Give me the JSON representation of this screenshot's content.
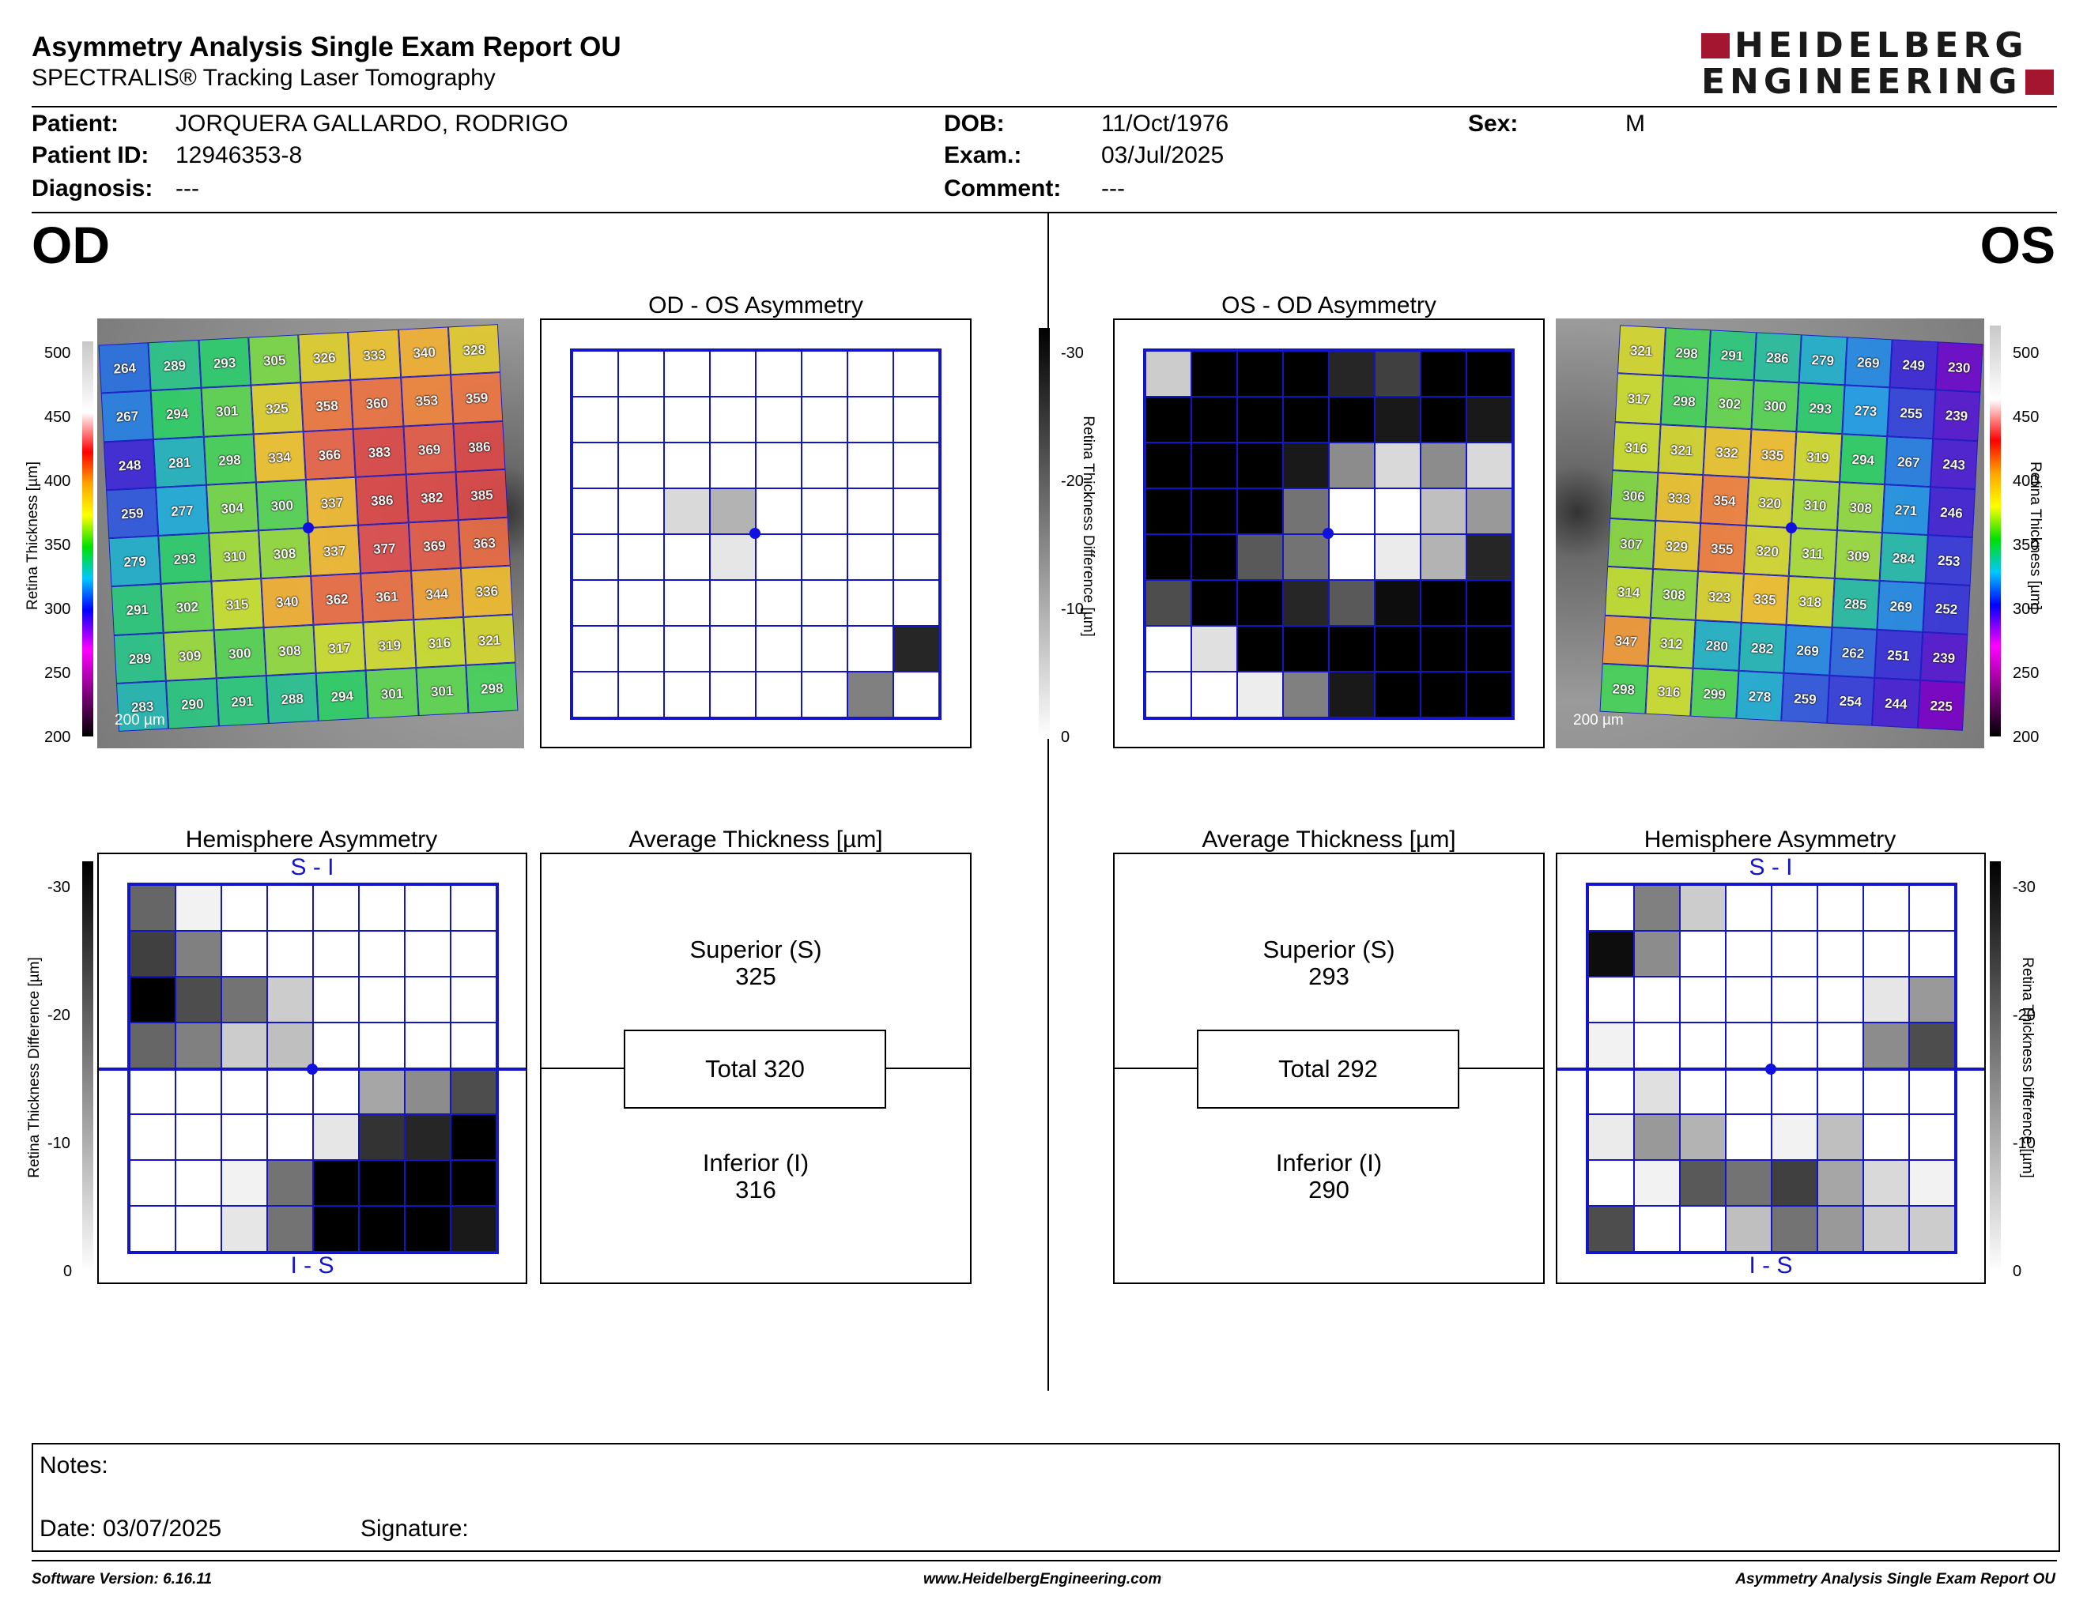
{
  "header": {
    "title": "Asymmetry Analysis Single Exam Report OU",
    "subtitle": "SPECTRALIS® Tracking Laser Tomography",
    "logo_line1": "HEIDELBERG",
    "logo_line2": "ENGINEERING"
  },
  "patient": {
    "patient_label": "Patient:",
    "patient_value": "JORQUERA GALLARDO, RODRIGO",
    "id_label": "Patient ID:",
    "id_value": "12946353-8",
    "diagnosis_label": "Diagnosis:",
    "diagnosis_value": "---",
    "dob_label": "DOB:",
    "dob_value": "11/Oct/1976",
    "exam_label": "Exam.:",
    "exam_value": "03/Jul/2025",
    "comment_label": "Comment:",
    "comment_value": "---",
    "sex_label": "Sex:",
    "sex_value": "M"
  },
  "eyes": {
    "od": "OD",
    "os": "OS"
  },
  "titles": {
    "od_os_asym": "OD - OS Asymmetry",
    "os_od_asym": "OS - OD Asymmetry",
    "hemi_left": "Hemisphere Asymmetry",
    "hemi_right": "Hemisphere Asymmetry",
    "avg_left": "Average Thickness [µm]",
    "avg_right": "Average Thickness [µm]"
  },
  "thickness_scale": {
    "label": "Retina  Thickness [µm]",
    "ticks": [
      "500",
      "450",
      "400",
      "350",
      "300",
      "250",
      "200"
    ],
    "scale_bar": "200 µm"
  },
  "diff_scale": {
    "label": "Retina Thickness Difference [µm]",
    "ticks": [
      "-30",
      "-20",
      "-10",
      "0"
    ]
  },
  "hemi_labels": {
    "top": "S - I",
    "bottom": "I - S"
  },
  "od": {
    "thickness": [
      [
        264,
        289,
        293,
        305,
        326,
        333,
        340,
        328
      ],
      [
        267,
        294,
        301,
        325,
        358,
        360,
        353,
        359
      ],
      [
        248,
        281,
        298,
        334,
        366,
        383,
        369,
        386
      ],
      [
        259,
        277,
        304,
        300,
        337,
        386,
        382,
        385
      ],
      [
        279,
        293,
        310,
        308,
        337,
        377,
        369,
        363
      ],
      [
        291,
        302,
        315,
        340,
        362,
        361,
        344,
        336
      ],
      [
        289,
        309,
        300,
        308,
        317,
        319,
        316,
        321
      ],
      [
        283,
        290,
        291,
        288,
        294,
        301,
        301,
        298
      ]
    ],
    "asym_shade": [
      [
        0,
        0,
        0,
        0,
        0,
        0,
        0,
        0
      ],
      [
        0,
        0,
        0,
        0,
        0,
        0,
        0,
        0
      ],
      [
        0,
        0,
        0,
        0,
        0,
        0,
        0,
        0
      ],
      [
        0,
        0,
        0.15,
        0.3,
        0,
        0,
        0,
        0
      ],
      [
        0,
        0,
        0,
        0.1,
        0,
        0,
        0,
        0
      ],
      [
        0,
        0,
        0,
        0,
        0,
        0,
        0,
        0
      ],
      [
        0,
        0,
        0,
        0,
        0,
        0,
        0,
        0.85
      ],
      [
        0,
        0,
        0,
        0,
        0,
        0,
        0.5,
        0
      ]
    ],
    "hemi_shade": [
      [
        0.6,
        0.05,
        0,
        0,
        0,
        0,
        0,
        0
      ],
      [
        0.75,
        0.5,
        0,
        0,
        0,
        0,
        0,
        0
      ],
      [
        1,
        0.7,
        0.55,
        0.2,
        0,
        0,
        0,
        0
      ],
      [
        0.6,
        0.5,
        0.2,
        0.25,
        0,
        0,
        0,
        0
      ],
      [
        0,
        0,
        0,
        0,
        0,
        0.35,
        0.45,
        0.7
      ],
      [
        0,
        0,
        0,
        0,
        0.1,
        0.8,
        0.85,
        1
      ],
      [
        0,
        0,
        0.05,
        0.55,
        1,
        1,
        1,
        1
      ],
      [
        0,
        0,
        0.1,
        0.55,
        1,
        1,
        1,
        0.9
      ]
    ],
    "superior_label": "Superior (S)",
    "superior_value": "325",
    "total": "Total 320",
    "inferior_label": "Inferior (I)",
    "inferior_value": "316"
  },
  "os": {
    "thickness": [
      [
        321,
        298,
        291,
        286,
        279,
        269,
        249,
        230
      ],
      [
        317,
        298,
        302,
        300,
        293,
        273,
        255,
        239
      ],
      [
        316,
        321,
        332,
        335,
        319,
        294,
        267,
        243
      ],
      [
        306,
        333,
        354,
        320,
        310,
        308,
        271,
        246
      ],
      [
        307,
        329,
        355,
        320,
        311,
        309,
        284,
        253
      ],
      [
        314,
        308,
        323,
        335,
        318,
        285,
        269,
        252
      ],
      [
        347,
        312,
        280,
        282,
        269,
        262,
        251,
        239
      ],
      [
        298,
        316,
        299,
        278,
        259,
        254,
        244,
        225
      ]
    ],
    "asym_shade": [
      [
        0.2,
        1,
        1,
        1,
        0.85,
        0.75,
        1,
        1
      ],
      [
        1,
        1,
        1,
        1,
        1,
        0.9,
        1,
        0.9
      ],
      [
        1,
        1,
        1,
        0.9,
        0.45,
        0.15,
        0.45,
        0.15
      ],
      [
        1,
        1,
        1,
        0.55,
        0,
        0,
        0.25,
        0.4
      ],
      [
        1,
        1,
        0.65,
        0.55,
        0,
        0.08,
        0.3,
        0.85
      ],
      [
        0.7,
        1,
        1,
        0.85,
        0.65,
        0.95,
        1,
        1
      ],
      [
        0,
        0.12,
        1,
        1,
        1,
        1,
        1,
        1
      ],
      [
        0,
        0,
        0.07,
        0.5,
        0.9,
        1,
        1,
        1
      ]
    ],
    "hemi_shade": [
      [
        0,
        0.5,
        0.2,
        0,
        0,
        0,
        0,
        0
      ],
      [
        0.95,
        0.45,
        0,
        0,
        0,
        0,
        0,
        0
      ],
      [
        0,
        0,
        0,
        0,
        0,
        0,
        0.1,
        0.4
      ],
      [
        0.05,
        0,
        0,
        0,
        0,
        0,
        0.45,
        0.7
      ],
      [
        0,
        0.12,
        0,
        0,
        0,
        0,
        0,
        0
      ],
      [
        0.08,
        0.4,
        0.3,
        0,
        0.05,
        0.25,
        0,
        0
      ],
      [
        0,
        0.05,
        0.65,
        0.55,
        0.75,
        0.35,
        0.15,
        0.05
      ],
      [
        0.7,
        0,
        0,
        0.25,
        0.55,
        0.4,
        0.2,
        0.2
      ]
    ],
    "superior_label": "Superior (S)",
    "superior_value": "293",
    "total": "Total 292",
    "inferior_label": "Inferior (I)",
    "inferior_value": "290"
  },
  "notes": {
    "notes_label": "Notes:",
    "date_label": "Date: 03/07/2025",
    "signature_label": "Signature:"
  },
  "footer": {
    "version": "Software Version: 6.16.11",
    "website": "www.HeidelbergEngineering.com",
    "report_name": "Asymmetry Analysis Single Exam Report OU"
  },
  "colors": {
    "grid_blue": "#1515c8",
    "logo_red": "#a4152f"
  }
}
